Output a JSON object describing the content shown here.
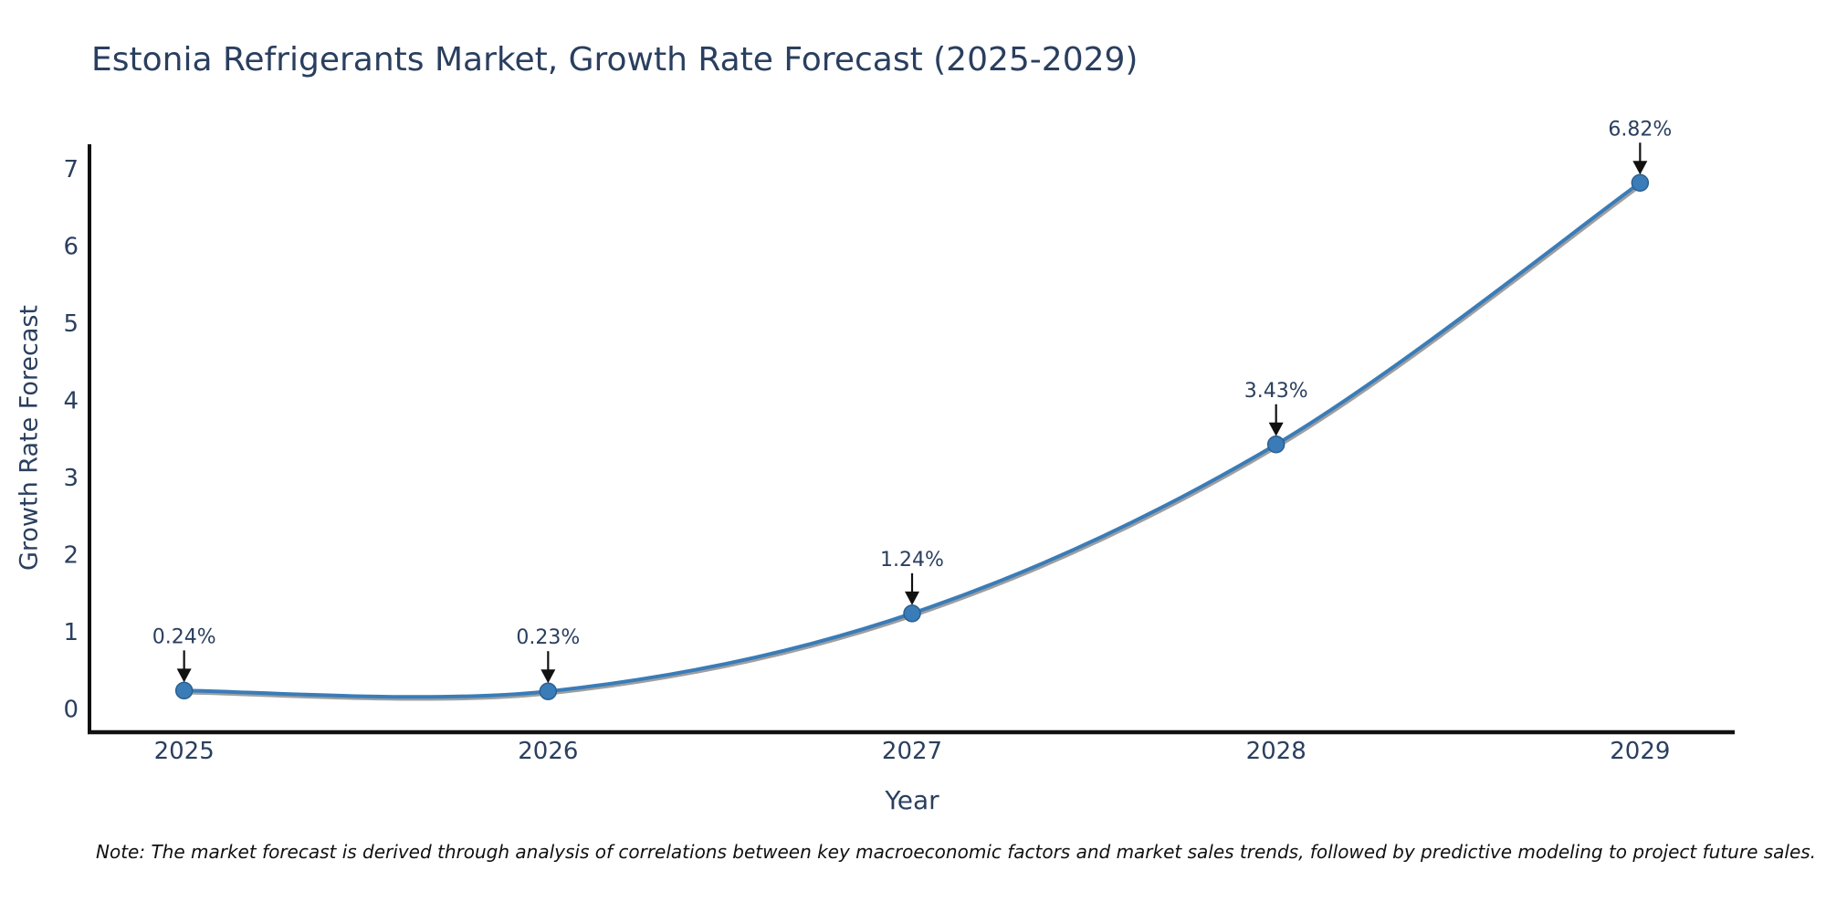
{
  "note": "Note: The market forecast is derived through analysis of correlations between key macroeconomic factors and market sales trends, followed by predictive modeling to project future sales.",
  "chart_data": {
    "type": "line",
    "title": "Estonia Refrigerants Market, Growth Rate Forecast (2025-2029)",
    "xlabel": "Year",
    "ylabel": "Growth Rate Forecast",
    "categories": [
      2025,
      2026,
      2027,
      2028,
      2029
    ],
    "values": [
      0.24,
      0.23,
      1.24,
      3.43,
      6.82
    ],
    "point_labels": [
      "0.24%",
      "0.23%",
      "1.24%",
      "3.43%",
      "6.82%"
    ],
    "yticks": [
      0,
      1,
      2,
      3,
      4,
      5,
      6,
      7
    ],
    "xlim": [
      2024.74,
      2029.26
    ],
    "ylim": [
      -0.3,
      7.32
    ],
    "grid": false,
    "legend": false,
    "line_shape": "spline",
    "colors": {
      "line": "#3a7cb8",
      "marker": "#3a7cb8",
      "marker_edge": "#2b5f8e",
      "line_shadow": "#3f3f3f",
      "axis": "#111111",
      "text": "#2a3f5f",
      "annotation_arrow": "#111111",
      "background": "#ffffff"
    }
  }
}
